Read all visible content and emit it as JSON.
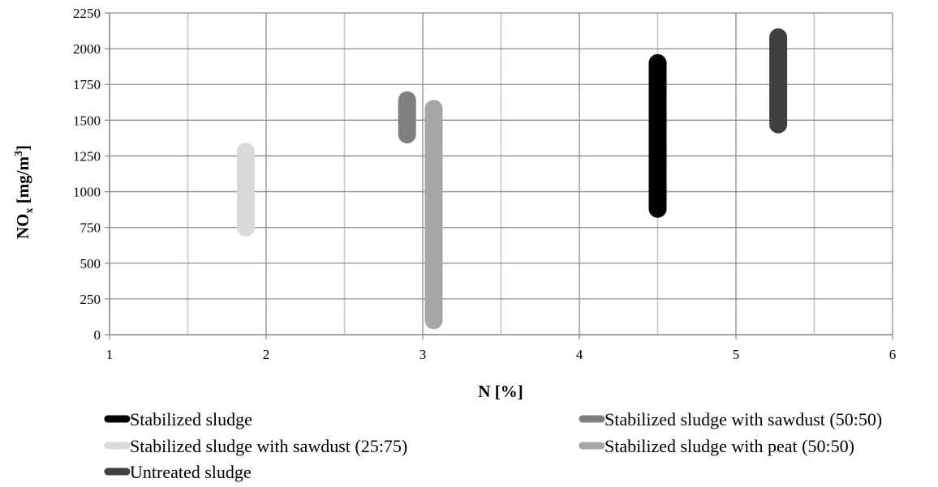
{
  "chart_data": {
    "type": "line",
    "xlabel": "N [%]",
    "ylabel": {
      "main": "NO",
      "sub": "x",
      "rest": " [mg/m",
      "sup": "3",
      "end": "]"
    },
    "xlim": [
      1,
      6
    ],
    "ylim": [
      0,
      2250
    ],
    "x_ticks": [
      "1",
      "2",
      "3",
      "4",
      "5",
      "6"
    ],
    "y_ticks": [
      "0",
      "250",
      "500",
      "750",
      "1000",
      "1250",
      "1500",
      "1750",
      "2000",
      "2250"
    ],
    "x_gridlines": [
      1,
      1.5,
      2,
      2.5,
      3,
      3.5,
      4,
      4.5,
      5,
      5.5,
      6
    ],
    "y_gridlines": [
      0,
      250,
      500,
      750,
      1000,
      1250,
      1500,
      1750,
      2000,
      2250
    ],
    "grid": true,
    "legend_position": "bottom",
    "series": [
      {
        "name": "Stabilized sludge",
        "color": "#000000",
        "x": [
          4.5,
          4.5
        ],
        "y": [
          880,
          1900
        ]
      },
      {
        "name": "Stabilized sludge with sawdust (50:50)",
        "color": "#808080",
        "x": [
          2.9,
          2.9
        ],
        "y": [
          1400,
          1640
        ]
      },
      {
        "name": "Stabilized sludge with sawdust (25:75)",
        "color": "#d9d9d9",
        "x": [
          1.87,
          1.87
        ],
        "y": [
          750,
          1280
        ]
      },
      {
        "name": "Stabilized sludge with peat (50:50)",
        "color": "#a6a6a6",
        "x": [
          3.07,
          3.07
        ],
        "y": [
          100,
          1580
        ]
      },
      {
        "name": "Untreated sludge",
        "color": "#404040",
        "x": [
          5.27,
          5.27
        ],
        "y": [
          1470,
          2080
        ]
      }
    ]
  }
}
